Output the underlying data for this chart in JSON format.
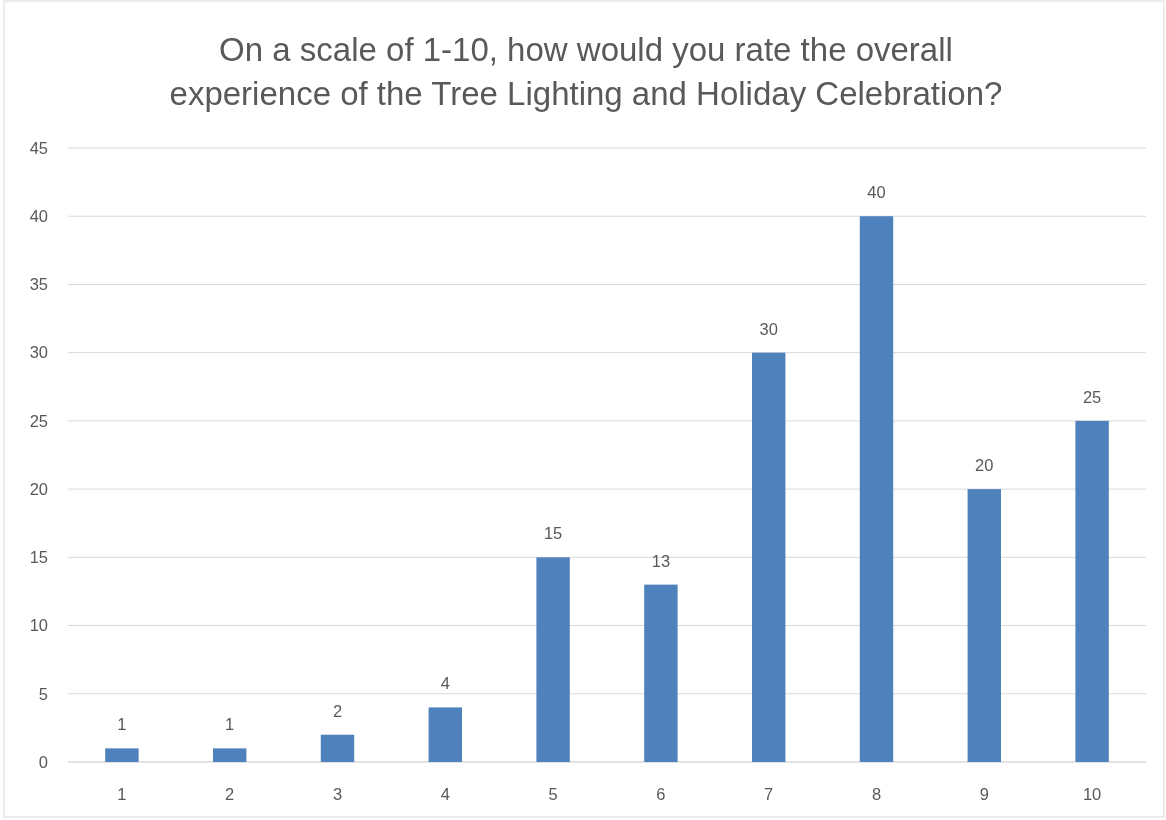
{
  "chart_data": {
    "type": "bar",
    "title": "On a scale of 1-10, how would you rate the overall experience of the Tree Lighting and Holiday Celebration?",
    "categories": [
      "1",
      "2",
      "3",
      "4",
      "5",
      "6",
      "7",
      "8",
      "9",
      "10"
    ],
    "values": [
      1,
      1,
      2,
      4,
      15,
      13,
      30,
      40,
      20,
      25
    ],
    "color": "#4f81bd",
    "ylim": [
      0,
      45
    ],
    "yticks": [
      0,
      5,
      10,
      15,
      20,
      25,
      30,
      35,
      40,
      45
    ],
    "grid": "y",
    "data_labels": true
  }
}
